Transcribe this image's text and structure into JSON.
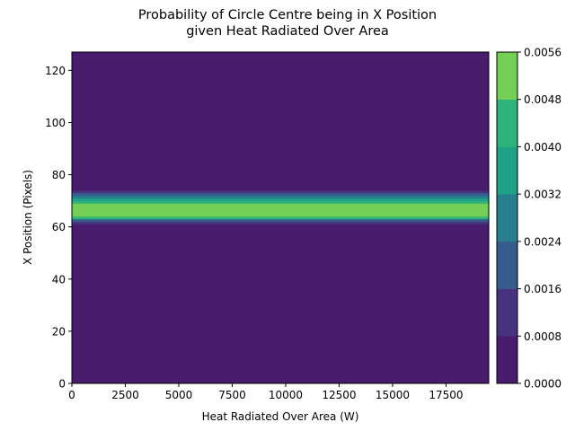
{
  "chart_data": {
    "type": "heatmap",
    "title_line1": "Probability of Circle Centre being in X Position",
    "title_line2": "given Heat Radiated Over Area",
    "xlabel": "Heat Radiated Over Area (W)",
    "ylabel": "X Position (Pixels)",
    "xlim": [
      0,
      19500
    ],
    "ylim": [
      0,
      127
    ],
    "x_ticks": [
      0,
      2500,
      5000,
      7500,
      10000,
      12500,
      15000,
      17500
    ],
    "x_tick_labels": [
      "0",
      "2500",
      "5000",
      "7500",
      "10000",
      "12500",
      "15000",
      "17500"
    ],
    "y_ticks": [
      0,
      20,
      40,
      60,
      80,
      100,
      120
    ],
    "y_tick_labels": [
      "0",
      "20",
      "40",
      "60",
      "80",
      "100",
      "120"
    ],
    "colorbar": {
      "levels": [
        0.0,
        0.0008,
        0.0016,
        0.0024,
        0.0032,
        0.004,
        0.0048,
        0.0056
      ],
      "tick_labels": [
        "0.0000",
        "0.0008",
        "0.0016",
        "0.0024",
        "0.0032",
        "0.0040",
        "0.0048",
        "0.0056"
      ],
      "colors": [
        "#481b6d",
        "#46327e",
        "#365c8d",
        "#277f8e",
        "#1fa187",
        "#2eb37c",
        "#74d055",
        "#d0e11c"
      ]
    },
    "profile_over_x_position": {
      "note_units": "probability as a function of X Position (pixels), approximately constant across all heat values",
      "x_position": [
        60.5,
        61.5,
        62.5,
        63.5,
        64.5,
        65.5,
        66.5,
        67.5,
        68.5,
        69.5,
        70.5,
        71.5,
        72.5,
        73.5,
        74.5
      ],
      "value": [
        0.0004,
        0.0012,
        0.002,
        0.0044,
        0.0054,
        0.0054,
        0.0054,
        0.0054,
        0.0054,
        0.0044,
        0.0036,
        0.0028,
        0.002,
        0.0012,
        0.0004
      ]
    },
    "background_value": 0.0
  }
}
